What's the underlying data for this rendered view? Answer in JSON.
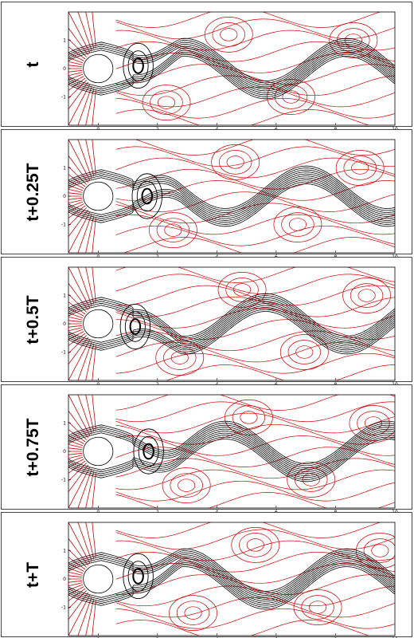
{
  "panels": [
    {
      "label": "t",
      "phase": 0.0,
      "vortex_x": 1.35
    },
    {
      "label": "t+0.25T",
      "phase": 0.25,
      "vortex_x": 1.65
    },
    {
      "label": "t+0.5T",
      "phase": 0.5,
      "vortex_x": 1.25
    },
    {
      "label": "t+0.75T",
      "phase": 0.75,
      "vortex_x": 1.7
    },
    {
      "label": "t+T",
      "phase": 1.0,
      "vortex_x": 1.35
    }
  ],
  "axes": {
    "xlim": [
      -1,
      10
    ],
    "ylim": [
      -2,
      2
    ],
    "x_ticks": [
      "0",
      "2",
      "4",
      "6",
      "8",
      "10"
    ],
    "y_ticks": [
      "1",
      "0",
      "-1"
    ]
  },
  "colors": {
    "streamline": "#000000",
    "pressure_contour": "#d00000",
    "cylinder": "#ffffff"
  }
}
